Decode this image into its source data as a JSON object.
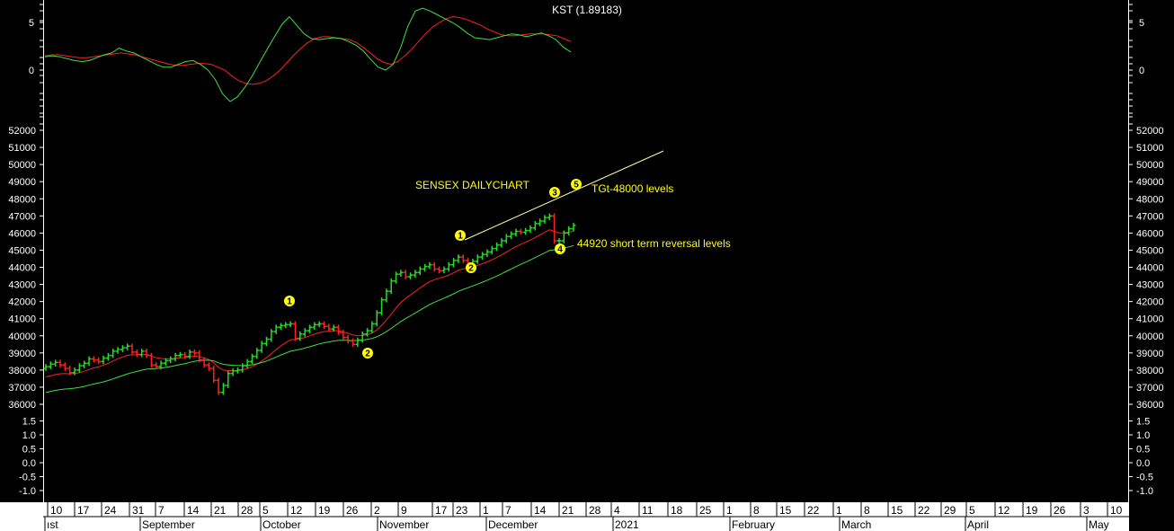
{
  "chart_data": [
    {
      "type": "line",
      "title": "KST (1.89183)",
      "yticks": [
        "5",
        "0"
      ],
      "series": [
        {
          "color": "#ff2020",
          "values": [
            1.5,
            1.6,
            1.6,
            1.5,
            1.4,
            1.3,
            1.3,
            1.4,
            1.5,
            1.6,
            1.7,
            1.8,
            1.7,
            1.6,
            1.4,
            1.2,
            1.0,
            0.8,
            0.6,
            0.5,
            0.5,
            0.6,
            0.7,
            0.7,
            0.6,
            0.3,
            0.0,
            -0.6,
            -1.1,
            -1.4,
            -1.5,
            -1.4,
            -1.1,
            -0.6,
            0.0,
            0.8,
            1.6,
            2.3,
            2.9,
            3.3,
            3.5,
            3.5,
            3.4,
            3.3,
            3.2,
            2.9,
            2.4,
            1.8,
            1.2,
            0.8,
            0.6,
            0.9,
            1.5,
            2.2,
            3.0,
            3.8,
            4.5,
            5.0,
            5.4,
            5.6,
            5.5,
            5.3,
            5.0,
            4.7,
            4.3,
            4.0,
            3.7,
            3.6,
            3.6,
            3.7,
            3.8,
            3.8,
            3.8,
            3.7,
            3.6,
            3.3,
            3.0
          ]
        },
        {
          "color": "#40e040",
          "values": [
            1.4,
            1.5,
            1.4,
            1.2,
            1.0,
            0.9,
            1.0,
            1.3,
            1.6,
            1.8,
            2.3,
            2.0,
            1.8,
            1.4,
            1.0,
            0.6,
            0.3,
            0.3,
            0.6,
            0.9,
            1.0,
            0.6,
            0.0,
            -1.0,
            -2.5,
            -3.3,
            -2.8,
            -1.8,
            -0.6,
            0.8,
            2.2,
            3.5,
            4.8,
            5.6,
            4.7,
            3.8,
            3.3,
            3.2,
            3.3,
            3.4,
            3.3,
            3.0,
            2.6,
            2.0,
            1.1,
            0.3,
            0.0,
            0.6,
            2.3,
            4.6,
            6.2,
            6.5,
            6.2,
            5.8,
            5.4,
            5.0,
            4.5,
            3.9,
            3.4,
            3.3,
            3.2,
            3.4,
            3.6,
            3.8,
            3.7,
            3.5,
            3.7,
            3.9,
            3.6,
            3.2,
            2.4,
            1.9
          ]
        }
      ]
    },
    {
      "type": "bar",
      "title": "SENSEX DAILYCHART",
      "yticks": [
        "52000",
        "51000",
        "50000",
        "49000",
        "48000",
        "47000",
        "46000",
        "45000",
        "44000",
        "43000",
        "42000",
        "41000",
        "40000",
        "39000",
        "38000",
        "37000",
        "36000"
      ],
      "ohlc_close": [
        38200,
        38350,
        38450,
        38300,
        38100,
        37850,
        38000,
        38250,
        38400,
        38650,
        38600,
        38500,
        38700,
        38850,
        39100,
        39200,
        39300,
        39400,
        39050,
        38900,
        39100,
        38850,
        38300,
        38200,
        38400,
        38550,
        38650,
        38850,
        38900,
        38800,
        39050,
        39000,
        38600,
        38300,
        38100,
        37400,
        36700,
        37100,
        37800,
        37950,
        38000,
        38250,
        38500,
        38800,
        39150,
        39550,
        39800,
        40250,
        40500,
        40600,
        40650,
        40700,
        39850,
        40100,
        40300,
        40500,
        40650,
        40700,
        40550,
        40400,
        40500,
        40200,
        39900,
        39700,
        39500,
        39750,
        40100,
        40300,
        40700,
        41350,
        42100,
        42600,
        43200,
        43600,
        43700,
        43450,
        43550,
        43700,
        43900,
        44050,
        44150,
        43900,
        43800,
        43900,
        44150,
        44400,
        44600,
        44400,
        44250,
        44350,
        44600,
        44750,
        44900,
        45100,
        45300,
        45550,
        45800,
        45950,
        46100,
        46050,
        46150,
        46300,
        46550,
        46700,
        46900,
        47000,
        45550,
        45550,
        46000,
        46250,
        46450
      ],
      "annotations": [
        {
          "label": "TGt-48000 levels"
        },
        {
          "label": "44920 short term reversal levels"
        }
      ],
      "wave_markers": [
        "1",
        "2",
        "1",
        "2",
        "3",
        "4",
        "5"
      ]
    },
    {
      "type": "line",
      "yticks": [
        "1.5",
        "1.0",
        "0.5",
        "0.0",
        "-0.5",
        "-1.0"
      ],
      "series": []
    }
  ],
  "date_axis": {
    "days": [
      "10",
      "17",
      "24",
      "31",
      "7",
      "14",
      "21",
      "28",
      "5",
      "12",
      "19",
      "26",
      "2",
      "9",
      "17",
      "23",
      "1",
      "7",
      "14",
      "21",
      "28",
      "4",
      "11",
      "18",
      "25",
      "1",
      "8",
      "15",
      "22",
      "1",
      "8",
      "15",
      "22",
      "29",
      "5",
      "12",
      "19",
      "26",
      "3",
      "10"
    ],
    "months": [
      "ıst",
      "September",
      "October",
      "November",
      "December",
      "2021",
      "February",
      "March",
      "April",
      "May"
    ]
  }
}
